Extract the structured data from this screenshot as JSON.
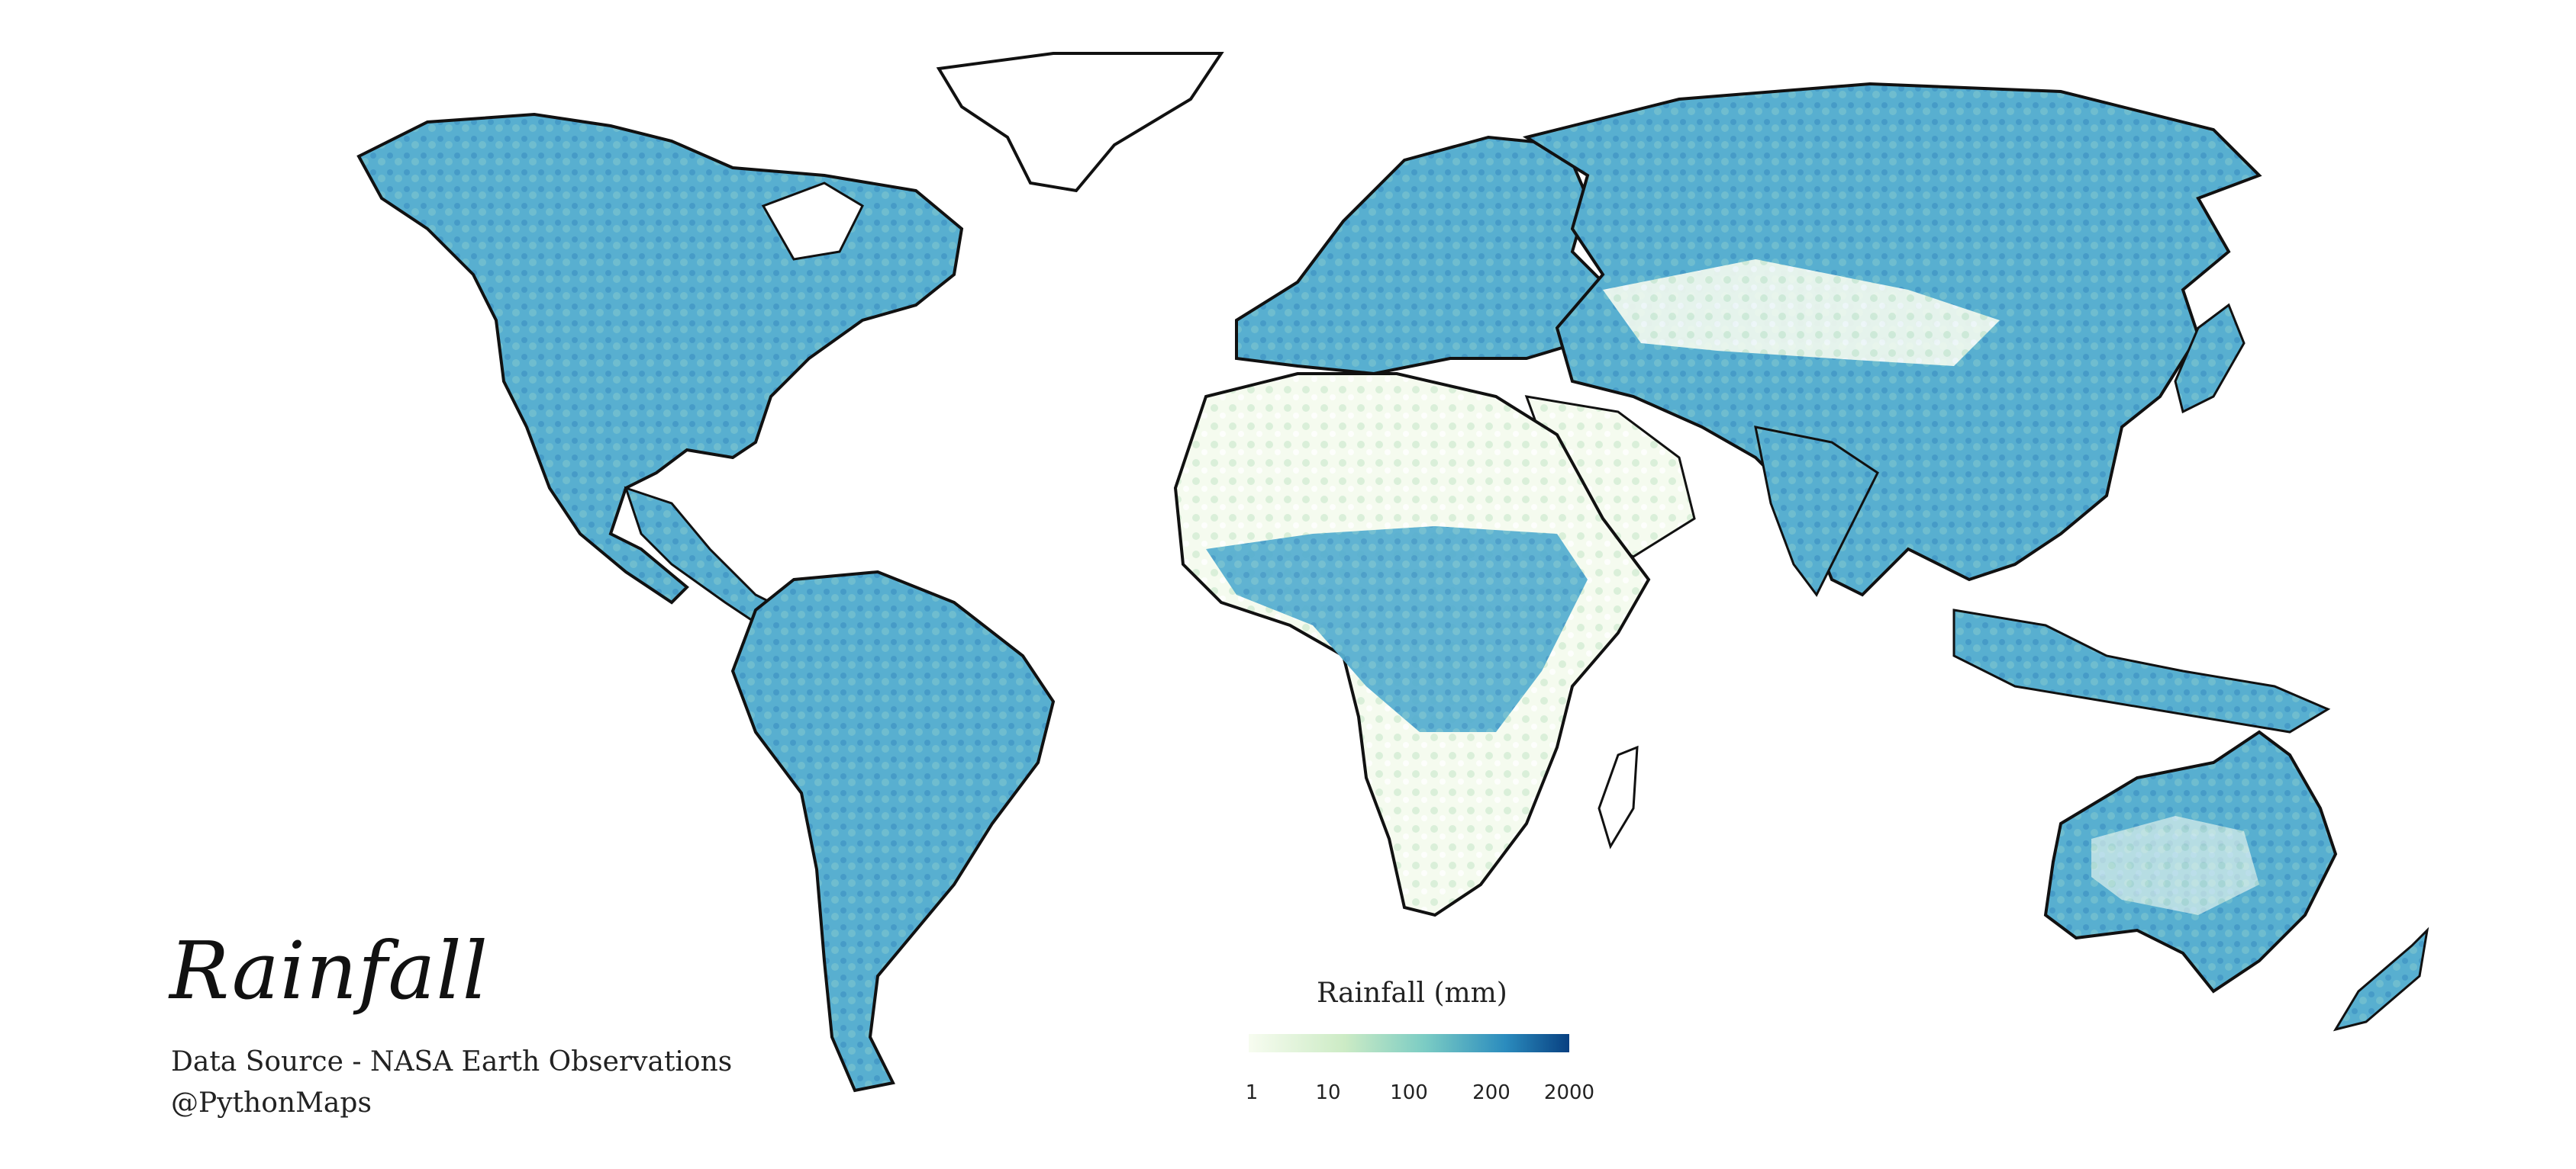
{
  "map": {
    "title": "Rainfall",
    "source_line": "Data Source - NASA Earth Observations",
    "handle_line": "@PythonMaps",
    "colors": {
      "ocean": "#ffffff",
      "land_low": "#f4fbee",
      "land_mid": "#b7e2bf",
      "land_high": "#4cafc9",
      "land_very_high": "#2b7cb6",
      "border": "#111111"
    }
  },
  "legend": {
    "title": "Rainfall (mm)",
    "ticks": [
      "1",
      "10",
      "100",
      "200",
      "2000"
    ],
    "colors": [
      "#f7fcf0",
      "#ccebc5",
      "#7bccc4",
      "#2b8cbe",
      "#084081"
    ]
  }
}
